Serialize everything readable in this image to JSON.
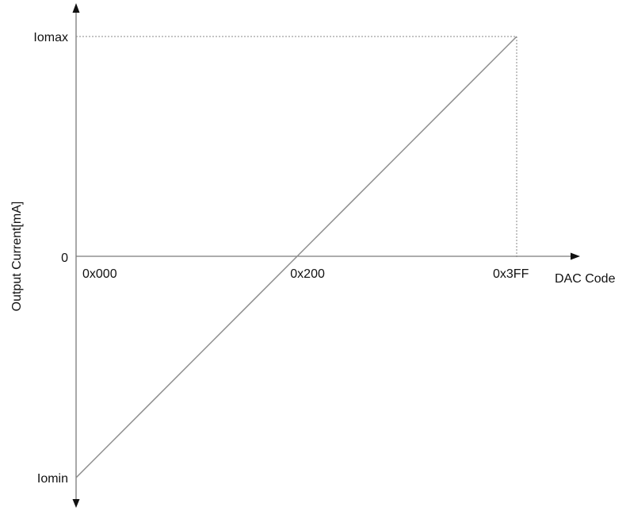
{
  "chart_data": {
    "type": "line",
    "xlabel": "DAC Code",
    "ylabel": "Output Current[mA]",
    "x_ticks": [
      "0x000",
      "0x200",
      "0x3FF"
    ],
    "y_ticks": [
      "Iomin",
      "0",
      "Iomax"
    ],
    "xlim": [
      0,
      1023
    ],
    "ylim": [
      -1,
      1
    ],
    "series": [
      {
        "x": [
          0,
          1023
        ],
        "y": [
          -1,
          1
        ]
      }
    ],
    "guides": [
      {
        "from": "Iomax",
        "to": "0x3FF",
        "style": "dotted"
      }
    ],
    "grid": false,
    "colors": {
      "axis": "#7a7a7a",
      "series": "#8c8c8c",
      "guide": "#8a8a8a",
      "text": "#111111"
    }
  }
}
